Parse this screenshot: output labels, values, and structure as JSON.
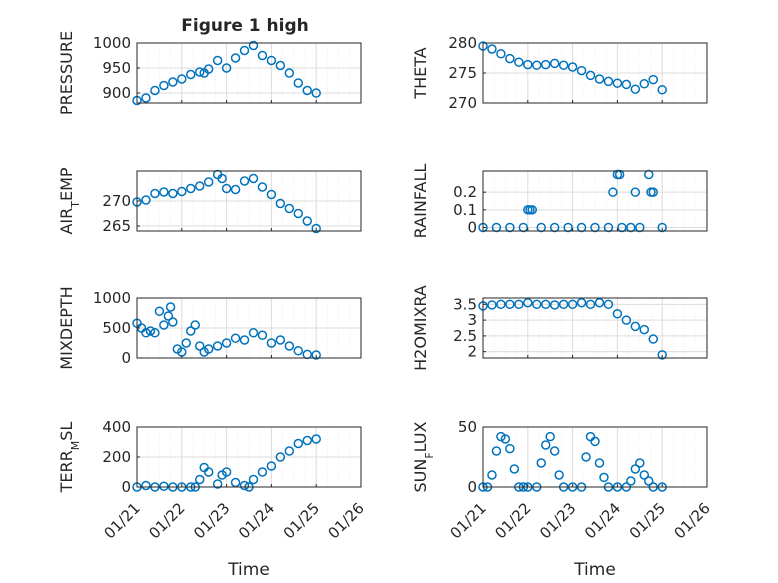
{
  "figure": {
    "title": "Figure 1 high",
    "marker_color": "#0072BD",
    "x_tick_labels": [
      "01/21",
      "01/22",
      "01/23",
      "01/24",
      "01/25",
      "01/26"
    ],
    "x_label": "Time"
  },
  "chart_data": [
    {
      "type": "scatter",
      "ylabel": "PRESSURE",
      "xlim": [
        21,
        26
      ],
      "ylim": [
        880,
        1000
      ],
      "yticks": [
        900,
        950,
        1000
      ],
      "x": [
        21.0,
        21.2,
        21.4,
        21.6,
        21.8,
        22.0,
        22.2,
        22.4,
        22.5,
        22.6,
        22.8,
        23.0,
        23.2,
        23.4,
        23.6,
        23.8,
        24.0,
        24.2,
        24.4,
        24.6,
        24.8,
        25.0
      ],
      "y": [
        885,
        890,
        905,
        915,
        922,
        928,
        937,
        942,
        940,
        948,
        965,
        950,
        970,
        985,
        995,
        975,
        965,
        955,
        940,
        920,
        905,
        900
      ]
    },
    {
      "type": "scatter",
      "ylabel": "THETA",
      "xlim": [
        21,
        26
      ],
      "ylim": [
        270,
        280
      ],
      "yticks": [
        270,
        275,
        280
      ],
      "x": [
        21.0,
        21.2,
        21.4,
        21.6,
        21.8,
        22.0,
        22.2,
        22.4,
        22.6,
        22.8,
        23.0,
        23.2,
        23.4,
        23.6,
        23.8,
        24.0,
        24.2,
        24.4,
        24.6,
        24.8,
        25.0
      ],
      "y": [
        279.5,
        279.0,
        278.2,
        277.4,
        276.8,
        276.4,
        276.3,
        276.4,
        276.6,
        276.3,
        276.0,
        275.4,
        274.6,
        274.0,
        273.6,
        273.3,
        273.1,
        272.3,
        273.2,
        273.9,
        272.2
      ]
    },
    {
      "type": "scatter",
      "ylabel": "AIR_TEMP",
      "xlim": [
        21,
        26
      ],
      "ylim": [
        264,
        276
      ],
      "yticks": [
        265,
        270
      ],
      "x": [
        21.0,
        21.2,
        21.4,
        21.6,
        21.8,
        22.0,
        22.2,
        22.4,
        22.6,
        22.8,
        22.9,
        23.0,
        23.2,
        23.4,
        23.6,
        23.8,
        24.0,
        24.2,
        24.4,
        24.6,
        24.8,
        25.0
      ],
      "y": [
        269.8,
        270.2,
        271.5,
        271.8,
        271.5,
        271.9,
        272.5,
        273.0,
        273.8,
        275.3,
        274.5,
        272.5,
        272.3,
        274.0,
        274.5,
        272.8,
        271.3,
        269.5,
        268.5,
        267.5,
        266.0,
        264.5
      ]
    },
    {
      "type": "scatter",
      "ylabel": "RAINFALL",
      "xlim": [
        21,
        26
      ],
      "ylim": [
        -0.02,
        0.32
      ],
      "yticks": [
        0,
        0.1,
        0.2
      ],
      "x": [
        21.0,
        21.3,
        21.6,
        21.9,
        22.0,
        22.05,
        22.1,
        22.3,
        22.6,
        22.9,
        23.2,
        23.5,
        23.8,
        23.9,
        24.0,
        24.05,
        24.1,
        24.3,
        24.4,
        24.5,
        24.7,
        24.75,
        24.8,
        25.0
      ],
      "y": [
        0,
        0,
        0,
        0,
        0.1,
        0.1,
        0.1,
        0,
        0,
        0,
        0,
        0,
        0,
        0.2,
        0.3,
        0.3,
        0,
        0,
        0.2,
        0,
        0.3,
        0.2,
        0.2,
        0
      ]
    },
    {
      "type": "scatter",
      "ylabel": "MIXDEPTH",
      "xlim": [
        21,
        26
      ],
      "ylim": [
        0,
        1000
      ],
      "yticks": [
        0,
        500,
        1000
      ],
      "x": [
        21.0,
        21.1,
        21.2,
        21.3,
        21.4,
        21.5,
        21.6,
        21.7,
        21.75,
        21.8,
        21.9,
        22.0,
        22.1,
        22.2,
        22.3,
        22.4,
        22.5,
        22.6,
        22.8,
        23.0,
        23.2,
        23.4,
        23.6,
        23.8,
        24.0,
        24.2,
        24.4,
        24.6,
        24.8,
        25.0
      ],
      "y": [
        580,
        500,
        420,
        450,
        420,
        780,
        550,
        700,
        850,
        600,
        150,
        100,
        250,
        450,
        550,
        200,
        100,
        150,
        200,
        250,
        330,
        300,
        420,
        380,
        250,
        300,
        200,
        120,
        60,
        50
      ]
    },
    {
      "type": "scatter",
      "ylabel": "H2OMIXRA",
      "xlim": [
        21,
        26
      ],
      "ylim": [
        1.8,
        3.7
      ],
      "yticks": [
        2,
        2.5,
        3,
        3.5
      ],
      "x": [
        21.0,
        21.2,
        21.4,
        21.6,
        21.8,
        22.0,
        22.2,
        22.4,
        22.6,
        22.8,
        23.0,
        23.2,
        23.4,
        23.6,
        23.8,
        24.0,
        24.2,
        24.4,
        24.6,
        24.8,
        25.0
      ],
      "y": [
        3.45,
        3.48,
        3.5,
        3.5,
        3.5,
        3.55,
        3.5,
        3.5,
        3.48,
        3.5,
        3.5,
        3.55,
        3.5,
        3.55,
        3.5,
        3.2,
        3.0,
        2.8,
        2.7,
        2.4,
        1.9
      ]
    },
    {
      "type": "scatter",
      "ylabel": "TERR_MSL",
      "xlim": [
        21,
        26
      ],
      "ylim": [
        0,
        400
      ],
      "yticks": [
        0,
        200,
        400
      ],
      "x": [
        21.0,
        21.2,
        21.4,
        21.6,
        21.8,
        22.0,
        22.2,
        22.3,
        22.4,
        22.5,
        22.6,
        22.8,
        22.9,
        23.0,
        23.2,
        23.4,
        23.5,
        23.6,
        23.8,
        24.0,
        24.2,
        24.4,
        24.6,
        24.8,
        25.0
      ],
      "y": [
        0,
        10,
        0,
        5,
        0,
        0,
        0,
        0,
        50,
        130,
        100,
        20,
        80,
        100,
        30,
        10,
        0,
        50,
        100,
        140,
        200,
        240,
        290,
        310,
        320
      ]
    },
    {
      "type": "scatter",
      "ylabel": "SUN_FLUX",
      "xlim": [
        21,
        26
      ],
      "ylim": [
        0,
        50
      ],
      "yticks": [
        0,
        50
      ],
      "x": [
        21.0,
        21.1,
        21.2,
        21.3,
        21.4,
        21.5,
        21.6,
        21.7,
        21.8,
        21.9,
        22.0,
        22.2,
        22.3,
        22.4,
        22.5,
        22.6,
        22.7,
        22.8,
        23.0,
        23.2,
        23.3,
        23.4,
        23.5,
        23.6,
        23.7,
        23.8,
        24.0,
        24.2,
        24.3,
        24.4,
        24.5,
        24.6,
        24.7,
        24.8,
        25.0
      ],
      "y": [
        0,
        0,
        10,
        30,
        42,
        40,
        32,
        15,
        0,
        0,
        0,
        0,
        20,
        35,
        42,
        30,
        10,
        0,
        0,
        0,
        25,
        42,
        38,
        20,
        8,
        0,
        0,
        0,
        5,
        15,
        20,
        10,
        5,
        0,
        0
      ]
    }
  ]
}
